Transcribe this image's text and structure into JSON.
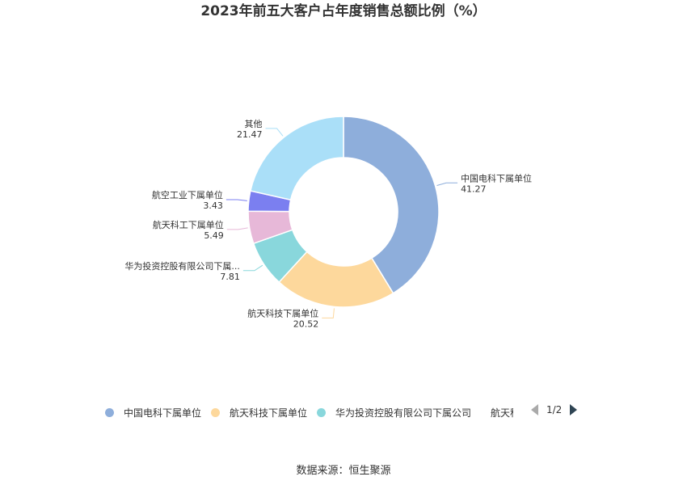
{
  "title": "2023年前五大客户占年度销售总额比例（%）",
  "chart_data": {
    "type": "pie",
    "subtype": "donut",
    "labels": [
      "中国电科下属单位",
      "航天科技下属单位",
      "华为投资控股有限公司下属...",
      "航天科工下属单位",
      "航空工业下属单位",
      "其他"
    ],
    "values": [
      41.27,
      20.52,
      7.81,
      5.49,
      3.43,
      21.47
    ],
    "value_labels": [
      "41.27",
      "20.52",
      "7.81",
      "5.49",
      "3.43",
      "21.47"
    ],
    "colors": [
      "#8eaedb",
      "#fdd89c",
      "#89d7dc",
      "#e7b8d8",
      "#7b7ff0",
      "#aadff8"
    ],
    "legend_position": "bottom"
  },
  "legend": {
    "items": [
      {
        "label": "中国电科下属单位",
        "color": "#8eaedb"
      },
      {
        "label": "航天科技下属单位",
        "color": "#fdd89c"
      },
      {
        "label": "华为投资控股有限公司下属公司",
        "color": "#89d7dc"
      },
      {
        "label": "航天科",
        "color": "#e7b8d8"
      }
    ],
    "page": "1/2"
  },
  "source": "数据来源：恒生聚源"
}
